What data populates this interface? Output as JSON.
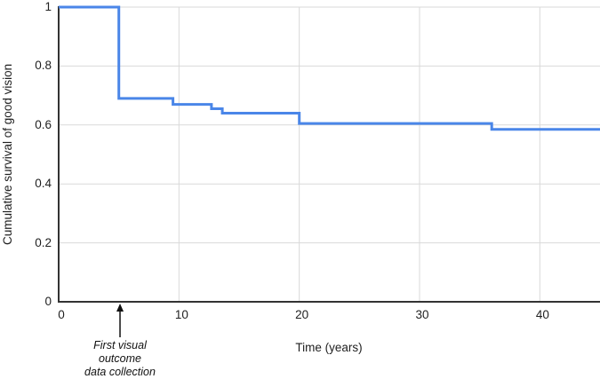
{
  "chart_data": {
    "type": "line",
    "subtype": "kaplan-meier-step",
    "title": "",
    "xlabel": "Time (years)",
    "ylabel": "Cumulative survival of good vision",
    "xlim": [
      0,
      45
    ],
    "ylim": [
      0,
      1
    ],
    "grid": true,
    "legend": "none",
    "x_ticks": [
      {
        "value": 0,
        "label": "0"
      },
      {
        "value": 10,
        "label": "10"
      },
      {
        "value": 20,
        "label": "20"
      },
      {
        "value": 30,
        "label": "30"
      },
      {
        "value": 40,
        "label": "40"
      }
    ],
    "y_ticks": [
      {
        "value": 0,
        "label": "0"
      },
      {
        "value": 0.2,
        "label": "0.2"
      },
      {
        "value": 0.4,
        "label": "0.4"
      },
      {
        "value": 0.6,
        "label": "0.6"
      },
      {
        "value": 0.8,
        "label": "0.8"
      },
      {
        "value": 1,
        "label": "1"
      }
    ],
    "points": [
      {
        "t": 0,
        "v": 1.0
      },
      {
        "t": 5,
        "v": 0.69
      },
      {
        "t": 9.5,
        "v": 0.67
      },
      {
        "t": 12.7,
        "v": 0.655
      },
      {
        "t": 13.6,
        "v": 0.64
      },
      {
        "t": 20,
        "v": 0.605
      },
      {
        "t": 36,
        "v": 0.585
      }
    ],
    "end_t": 45,
    "colors": {
      "line": "#4a86e8",
      "grid": "#d9d9d9",
      "axis": "#333333",
      "text": "#212121",
      "annotation": "#111111"
    },
    "annotation": {
      "lines": [
        "First visual",
        "outcome",
        "data collection"
      ],
      "arrow_t": 5.1
    }
  }
}
